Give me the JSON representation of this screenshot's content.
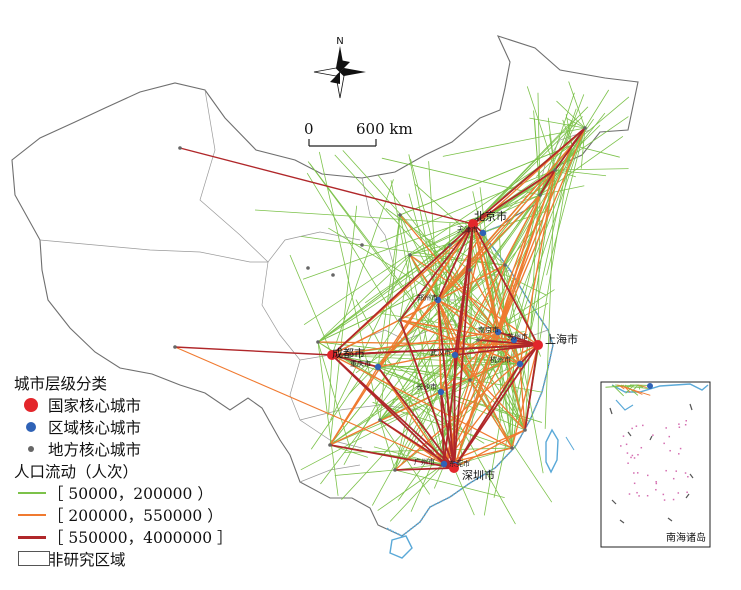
{
  "compass": {
    "north": "N"
  },
  "scale_bar": {
    "start": "0",
    "end": "600 km"
  },
  "legend": {
    "title_cities": "城市层级分类",
    "national": "国家核心城市",
    "regional": "区域核心城市",
    "local": "地方核心城市",
    "title_flow": "人口流动（人次）",
    "flow_low": "［ 50000，200000 ）",
    "flow_mid": "［ 200000，550000 ）",
    "flow_high": "［ 550000，4000000 ］",
    "non_study": "非研究区域"
  },
  "cities": {
    "beijing": "北京市",
    "shanghai": "上海市",
    "chengdu": "成都市",
    "shenzhen": "深圳市",
    "tianjin": "天津市",
    "zhengzhou": "郑州市",
    "nanjing": "南京市",
    "suzhou": "苏州市",
    "wuhan": "武汉市",
    "chongqing": "重庆市",
    "hangzhou": "杭州市",
    "changsha": "长沙市",
    "guangzhou": "广州市",
    "dongguan": "东莞市"
  },
  "inset": {
    "label": "南海诸岛"
  },
  "colors": {
    "national": "#e3262b",
    "regional": "#2f62b6",
    "local": "#666666",
    "flow_low": "#7cc24a",
    "flow_mid": "#f07a30",
    "flow_high": "#b0272a",
    "coast": "#5aa9d8"
  }
}
